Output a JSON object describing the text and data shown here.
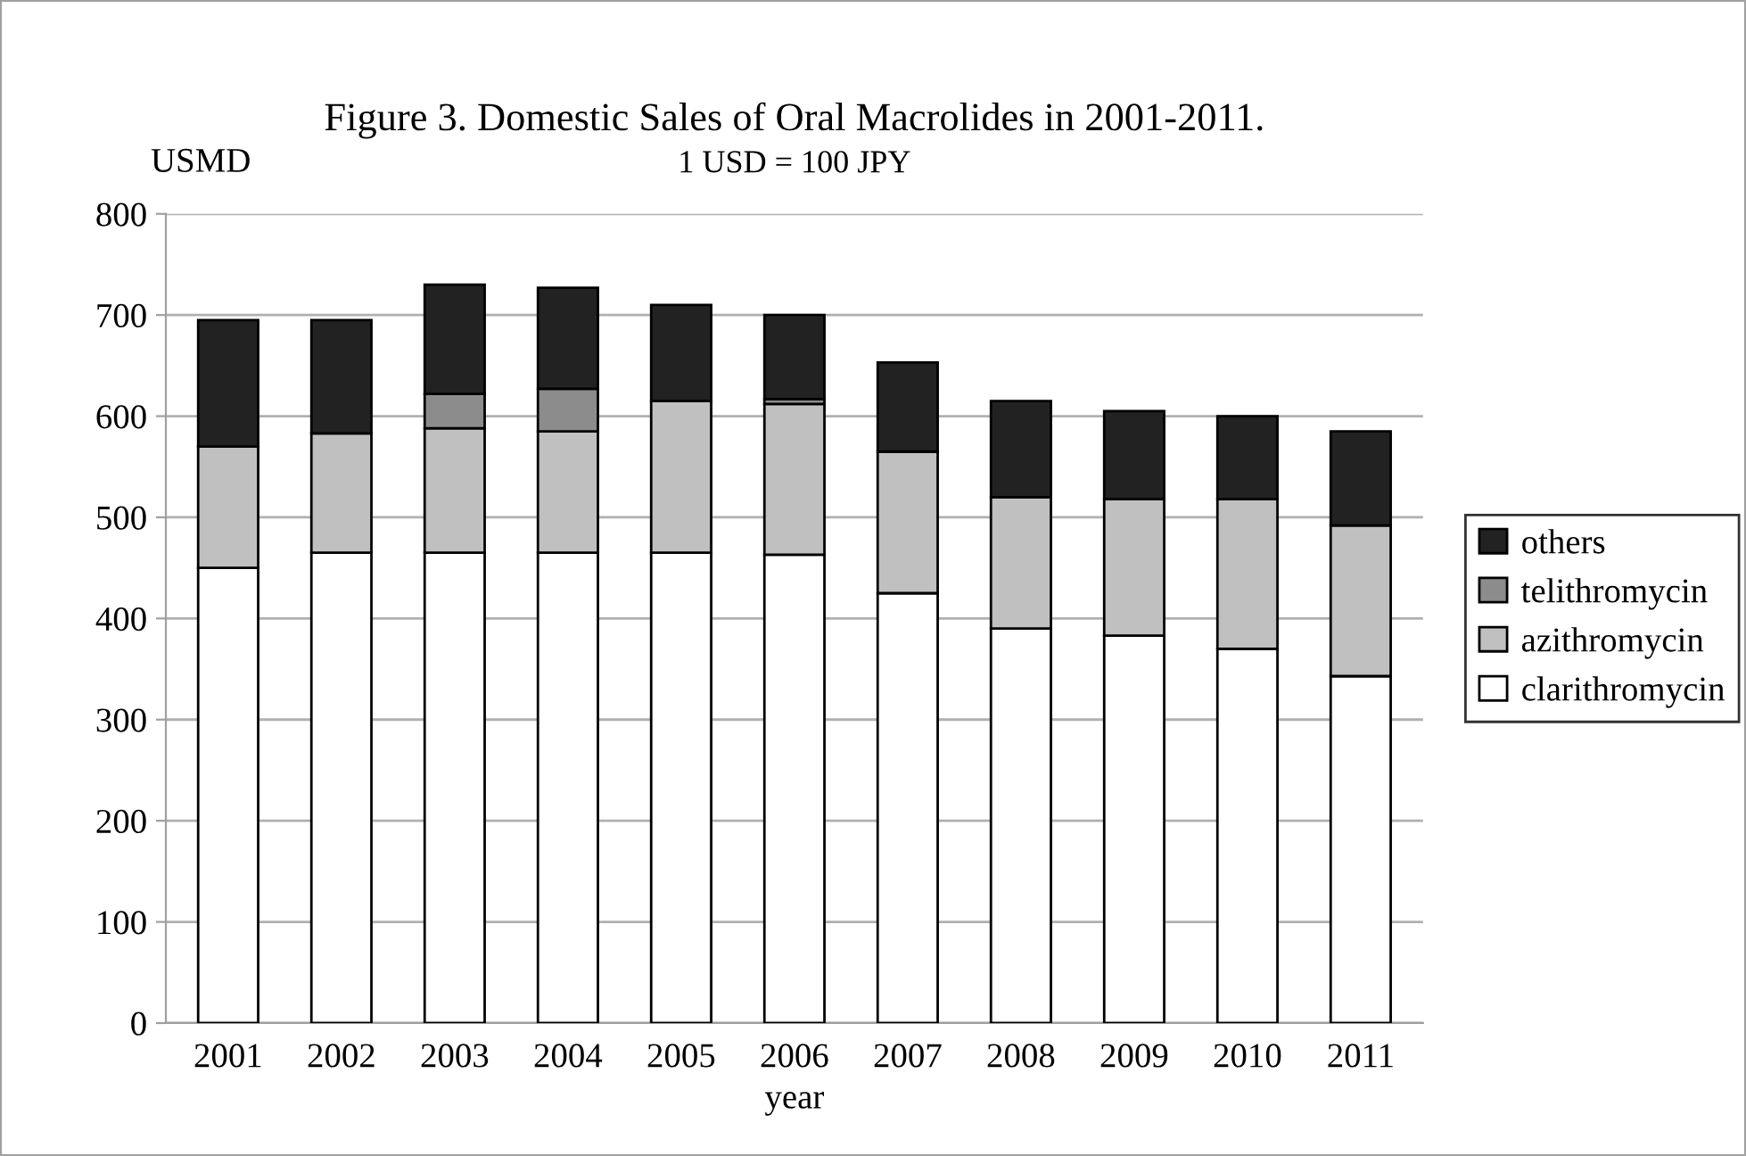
{
  "chart_data": {
    "type": "bar",
    "stacked": true,
    "title": "Figure 3. Domestic Sales of Oral Macrolides in 2001-2011.",
    "subtitle": "1 USD = 100 JPY",
    "ylabel": "USMD",
    "xlabel": "year",
    "categories": [
      "2001",
      "2002",
      "2003",
      "2004",
      "2005",
      "2006",
      "2007",
      "2008",
      "2009",
      "2010",
      "2011"
    ],
    "series": [
      {
        "name": "clarithromycin",
        "color": "#ffffff",
        "values": [
          450,
          465,
          465,
          465,
          465,
          463,
          425,
          390,
          383,
          370,
          343
        ]
      },
      {
        "name": "azithromycin",
        "color": "#c0c0c0",
        "values": [
          120,
          118,
          123,
          120,
          150,
          149,
          140,
          130,
          135,
          148,
          149
        ]
      },
      {
        "name": "telithromycin",
        "color": "#8c8c8c",
        "values": [
          null,
          null,
          34,
          42,
          null,
          5,
          null,
          null,
          null,
          null,
          null
        ]
      },
      {
        "name": "others",
        "color": "#222222",
        "values": [
          125,
          112,
          108,
          100,
          95,
          83,
          88,
          95,
          87,
          82,
          93
        ]
      }
    ],
    "ylim": [
      0,
      800
    ],
    "yticks": [
      0,
      100,
      200,
      300,
      400,
      500,
      600,
      700,
      800
    ],
    "grid": "y",
    "legend": "right"
  }
}
